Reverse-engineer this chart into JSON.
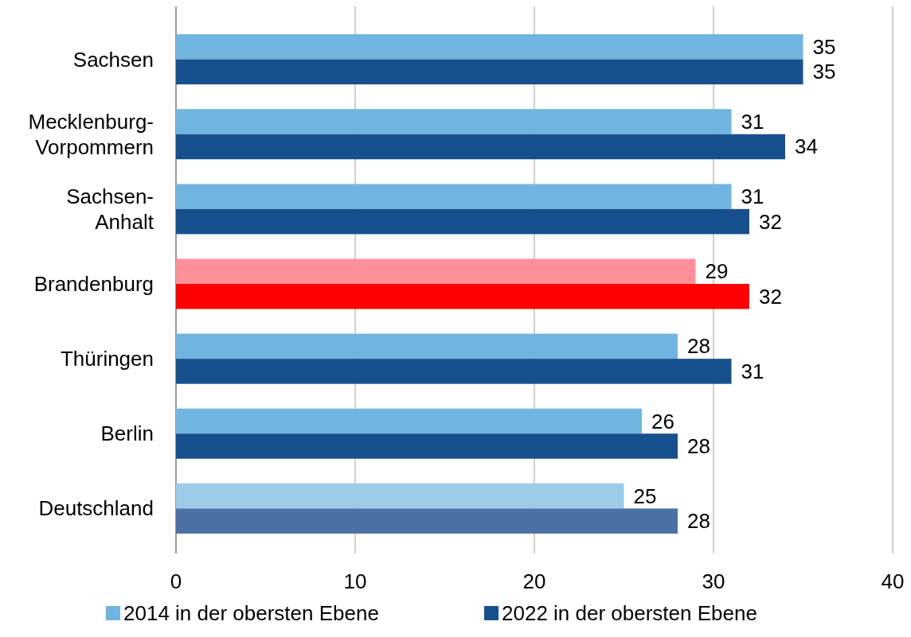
{
  "chart_data": {
    "type": "bar",
    "orientation": "horizontal",
    "categories": [
      "Sachsen",
      "Mecklenburg-Vorpommern",
      "Sachsen-Anhalt",
      "Brandenburg",
      "Thüringen",
      "Berlin",
      "Deutschland"
    ],
    "series": [
      {
        "name": "2014 in der obersten Ebene",
        "color": "#70b5e0",
        "colors": [
          "#70b5e0",
          "#70b5e0",
          "#70b5e0",
          "#ff8f99",
          "#70b5e0",
          "#70b5e0",
          "#9ccbea"
        ],
        "values": [
          35,
          31,
          31,
          29,
          28,
          26,
          25
        ]
      },
      {
        "name": "2022 in der obersten Ebene",
        "color": "#17508f",
        "colors": [
          "#17508f",
          "#17508f",
          "#17508f",
          "#ff0000",
          "#17508f",
          "#17508f",
          "#4a72a5"
        ],
        "values": [
          35,
          34,
          32,
          32,
          31,
          28,
          28
        ]
      }
    ],
    "xlim": [
      0,
      40
    ],
    "xticks": [
      0,
      10,
      20,
      30,
      40
    ],
    "grid": "x",
    "legend": "bottom",
    "data_labels": true
  }
}
